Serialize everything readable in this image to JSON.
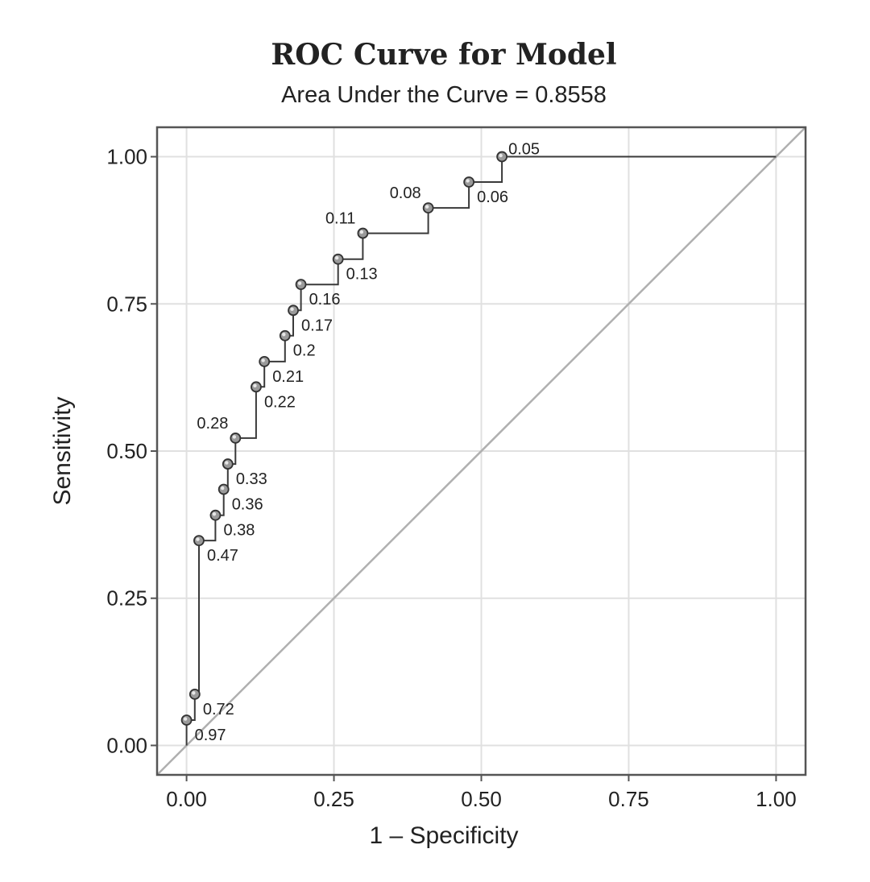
{
  "chart_data": {
    "type": "line",
    "title": "ROC Curve for Model",
    "subtitle": "Area Under the Curve = 0.8558",
    "xlabel": "1 – Specificity",
    "ylabel": "Sensitivity",
    "xlim": [
      -0.05,
      1.05
    ],
    "ylim": [
      -0.05,
      1.05
    ],
    "xticks": [
      "0.00",
      "0.25",
      "0.50",
      "0.75",
      "1.00"
    ],
    "yticks": [
      "0.00",
      "0.25",
      "0.50",
      "0.75",
      "1.00"
    ],
    "tick_values": [
      0,
      0.25,
      0.5,
      0.75,
      1.0
    ],
    "grid": true,
    "reference_line": {
      "name": "chance",
      "x": [
        0,
        1
      ],
      "y": [
        0,
        1
      ]
    },
    "series": [
      {
        "name": "ROC",
        "x": [
          0,
          0,
          0.014,
          0.014,
          0.021,
          0.021,
          0.049,
          0.049,
          0.063,
          0.063,
          0.07,
          0.07,
          0.083,
          0.083,
          0.118,
          0.118,
          0.132,
          0.132,
          0.167,
          0.167,
          0.181,
          0.181,
          0.194,
          0.194,
          0.257,
          0.257,
          0.299,
          0.299,
          0.41,
          0.41,
          0.479,
          0.479,
          0.535,
          0.535,
          1.0
        ],
        "y": [
          0,
          0.043,
          0.043,
          0.087,
          0.087,
          0.348,
          0.348,
          0.391,
          0.391,
          0.435,
          0.435,
          0.478,
          0.478,
          0.522,
          0.522,
          0.609,
          0.609,
          0.652,
          0.652,
          0.696,
          0.696,
          0.739,
          0.739,
          0.783,
          0.783,
          0.826,
          0.826,
          0.87,
          0.87,
          0.913,
          0.913,
          0.957,
          0.957,
          1.0,
          1.0
        ]
      }
    ],
    "points": [
      {
        "x": 0.0,
        "y": 0.043,
        "label": "0.97",
        "pos": "br"
      },
      {
        "x": 0.014,
        "y": 0.087,
        "label": "0.72",
        "pos": "br"
      },
      {
        "x": 0.021,
        "y": 0.348,
        "label": "0.47",
        "pos": "br"
      },
      {
        "x": 0.049,
        "y": 0.391,
        "label": "0.38",
        "pos": "br"
      },
      {
        "x": 0.063,
        "y": 0.435,
        "label": "0.36",
        "pos": "br"
      },
      {
        "x": 0.07,
        "y": 0.478,
        "label": "0.33",
        "pos": "br"
      },
      {
        "x": 0.083,
        "y": 0.522,
        "label": "0.28",
        "pos": "tl"
      },
      {
        "x": 0.118,
        "y": 0.609,
        "label": "0.22",
        "pos": "br"
      },
      {
        "x": 0.132,
        "y": 0.652,
        "label": "0.21",
        "pos": "br"
      },
      {
        "x": 0.167,
        "y": 0.696,
        "label": "0.2",
        "pos": "br"
      },
      {
        "x": 0.181,
        "y": 0.739,
        "label": "0.17",
        "pos": "br"
      },
      {
        "x": 0.194,
        "y": 0.783,
        "label": "0.16",
        "pos": "br"
      },
      {
        "x": 0.257,
        "y": 0.826,
        "label": "0.13",
        "pos": "br"
      },
      {
        "x": 0.299,
        "y": 0.87,
        "label": "0.11",
        "pos": "tl"
      },
      {
        "x": 0.41,
        "y": 0.913,
        "label": "0.08",
        "pos": "tl"
      },
      {
        "x": 0.479,
        "y": 0.957,
        "label": "0.06",
        "pos": "br"
      },
      {
        "x": 0.535,
        "y": 1.0,
        "label": "0.05",
        "pos": "tr"
      }
    ],
    "colors": {
      "curve": "#3a3a3a",
      "reference": "#b0b0b0",
      "grid": "#e0e0e0",
      "frame": "#555555",
      "marker_fill": "#9a9a9a"
    }
  }
}
